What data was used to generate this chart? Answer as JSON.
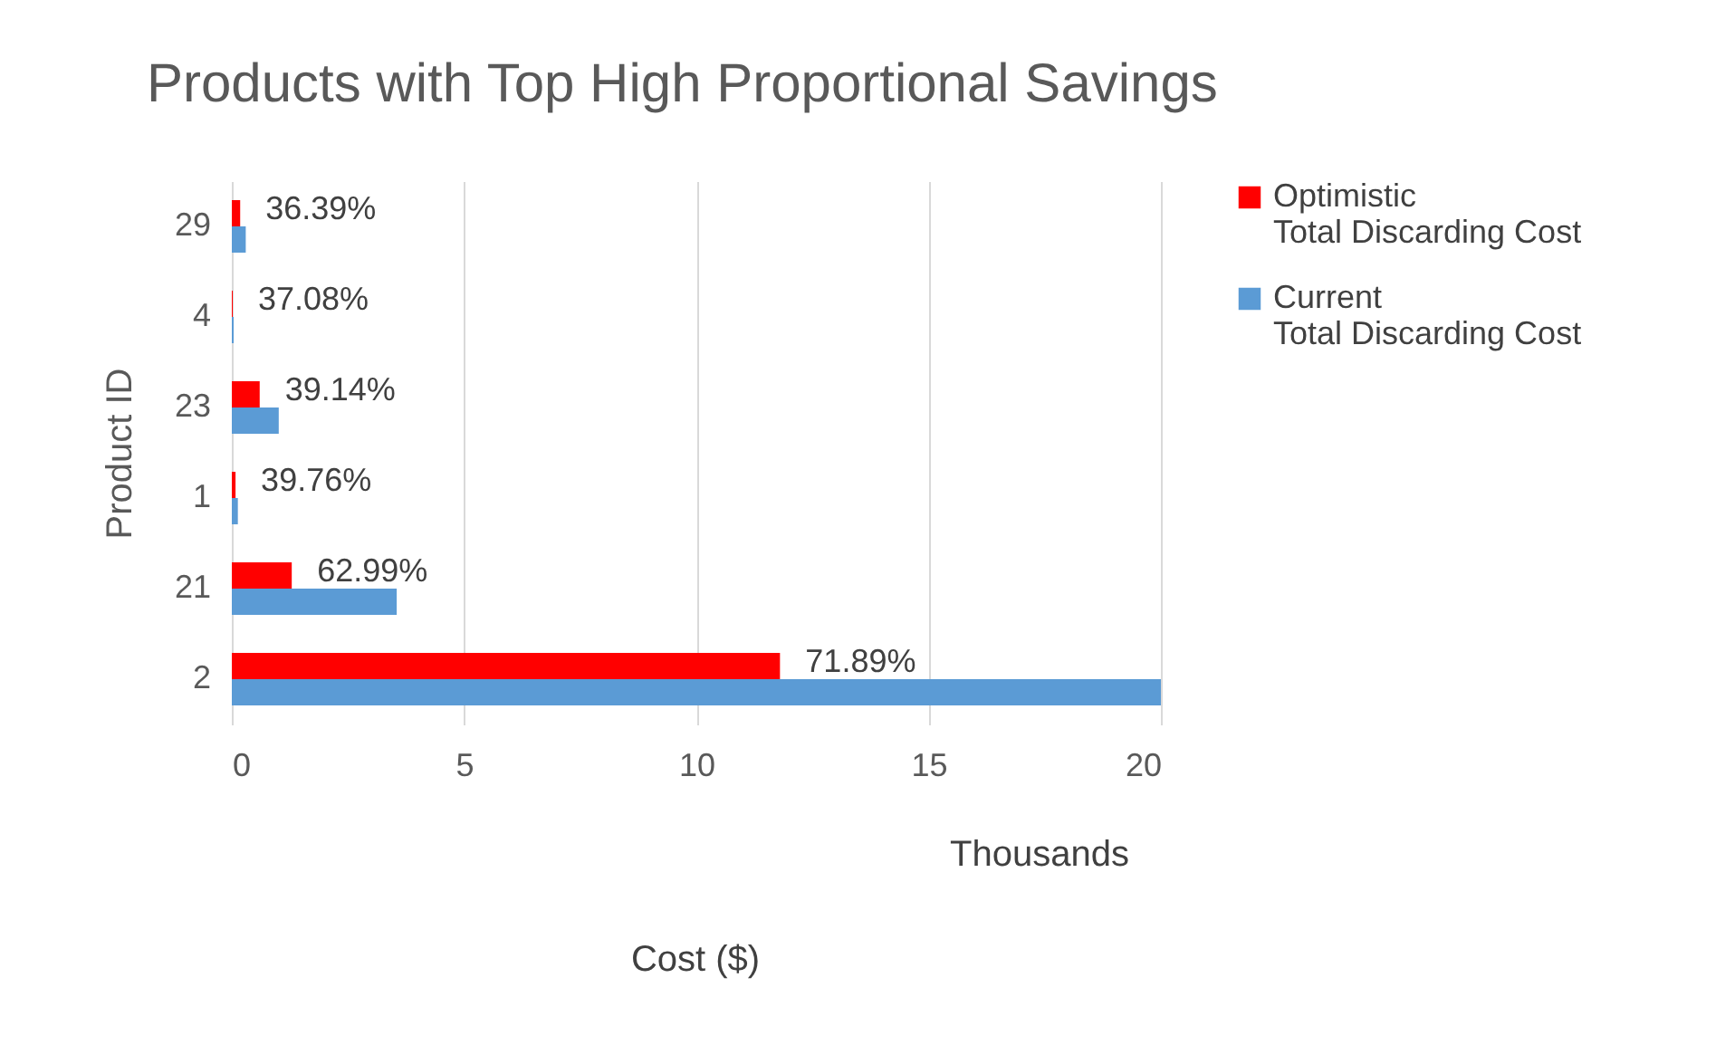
{
  "chart_data": {
    "type": "bar",
    "orientation": "horizontal",
    "title": "Products with Top High Proportional Savings",
    "xlabel": "Cost ($)",
    "ylabel": "Product ID",
    "categories": [
      "29",
      "4",
      "23",
      "1",
      "21",
      "2"
    ],
    "series": [
      {
        "name": "Optimistic Total Discarding Cost",
        "color": "#ff0000",
        "values": [
          0.18,
          0.02,
          0.6,
          0.08,
          1.29,
          11.8
        ]
      },
      {
        "name": "Current Total Discarding Cost",
        "color": "#5b9bd5",
        "values": [
          0.3,
          0.04,
          1.01,
          0.13,
          3.55,
          20
        ]
      }
    ],
    "xlim": [
      0,
      20
    ],
    "xticks": [
      0,
      5,
      10,
      15,
      20
    ],
    "grid": "x",
    "legend": "right",
    "annotations": [
      {
        "text": "36.39%",
        "x": 0.18,
        "y": "29"
      },
      {
        "text": "37.08%",
        "x": 0.02,
        "y": "4"
      },
      {
        "text": "39.14%",
        "x": 0.6,
        "y": "23"
      },
      {
        "text": "39.76%",
        "x": 0.08,
        "y": "1"
      },
      {
        "text": "62.99%",
        "x": 1.29,
        "y": "21"
      },
      {
        "text": "71.89%",
        "x": 11.8,
        "y": "2"
      },
      "Thousands"
    ]
  }
}
